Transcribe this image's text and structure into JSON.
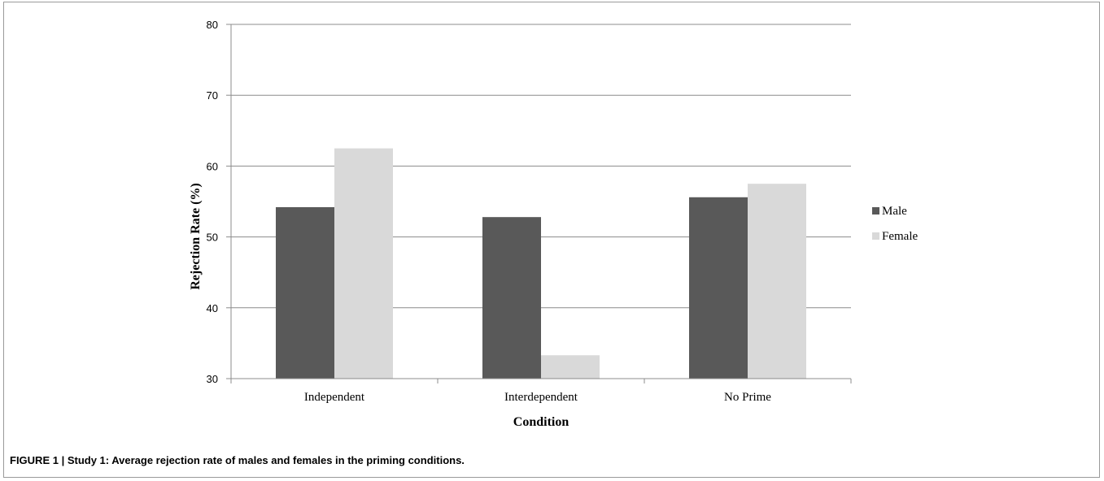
{
  "caption": "FIGURE 1 | Study 1: Average rejection rate of males and females in the priming conditions.",
  "colors": {
    "male": "#595959",
    "female": "#d9d9d9",
    "grid": "#8c8c8c",
    "axis": "#8c8c8c"
  },
  "chart_data": {
    "type": "bar",
    "title": "",
    "xlabel": "Condition",
    "ylabel": "Rejection Rate (%)",
    "categories": [
      "Independent",
      "Interdependent",
      "No Prime"
    ],
    "series": [
      {
        "name": "Male",
        "values": [
          54.2,
          52.8,
          55.6
        ]
      },
      {
        "name": "Female",
        "values": [
          62.5,
          33.3,
          57.5
        ]
      }
    ],
    "ylim": [
      30,
      80
    ],
    "yticks": [
      30,
      40,
      50,
      60,
      70,
      80
    ],
    "grid": true,
    "legend_position": "right"
  }
}
